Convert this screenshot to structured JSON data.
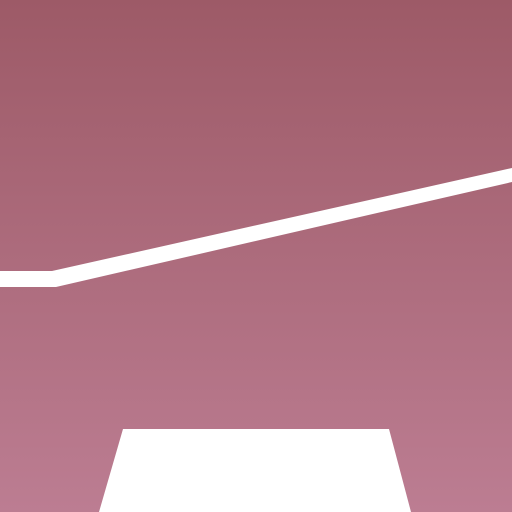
{
  "colors": {
    "background_top": "#9d5a67",
    "background_bottom": "#bc7d92",
    "line": "#ffffff",
    "shape": "#ffffff"
  },
  "icons": {
    "line": "diagonal-line",
    "shape": "trapezoid"
  }
}
